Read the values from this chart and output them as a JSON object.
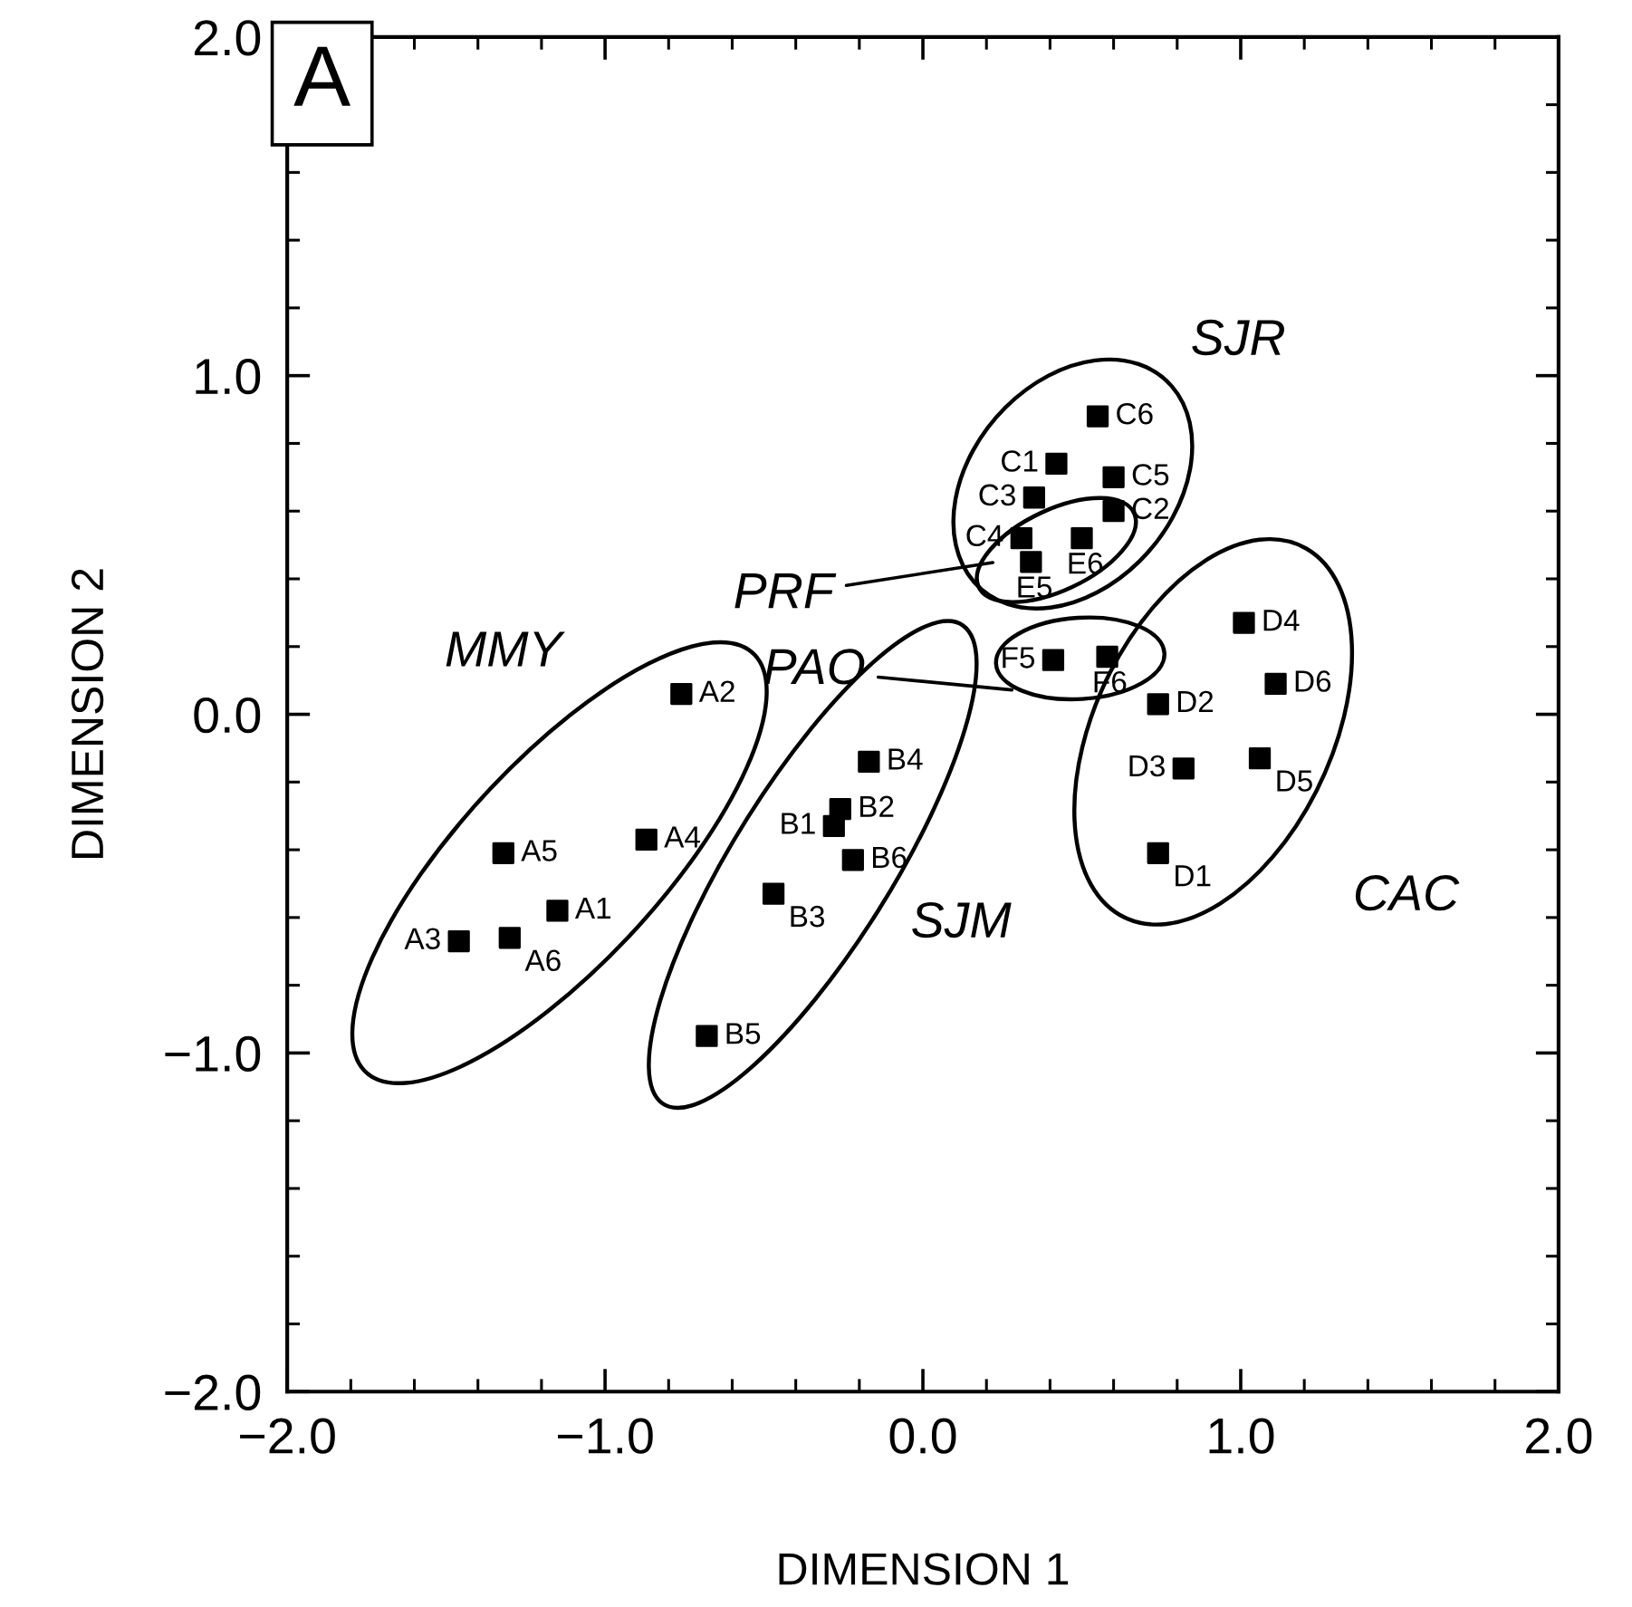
{
  "chart_data": {
    "type": "scatter",
    "xlabel": "DIMENSION 1",
    "ylabel": "DIMENSION 2",
    "xlim": [
      -2,
      2
    ],
    "ylim": [
      -2,
      2
    ],
    "xticks": [
      {
        "value": -2,
        "label": "−2.0"
      },
      {
        "value": -1,
        "label": "−1.0"
      },
      {
        "value": 0,
        "label": "0.0"
      },
      {
        "value": 1,
        "label": "1.0"
      },
      {
        "value": 2,
        "label": "2.0"
      }
    ],
    "yticks": [
      {
        "value": -2,
        "label": "−2.0"
      },
      {
        "value": -1,
        "label": "−1.0"
      },
      {
        "value": 0,
        "label": "0.0"
      },
      {
        "value": 1,
        "label": "1.0"
      },
      {
        "value": 2,
        "label": "2.0"
      }
    ],
    "marker": "square",
    "grid": false,
    "legend": false,
    "series": [
      {
        "color": "#000000",
        "x": [
          -1.15,
          -0.76,
          -1.46,
          -0.87,
          -1.32,
          -1.3
        ],
        "values": [
          -0.58,
          0.06,
          -0.67,
          -0.37,
          -0.41,
          -0.66
        ],
        "value_labels": [
          "A1",
          "A2",
          "A3",
          "A4",
          "A5",
          "A6"
        ]
      },
      {
        "color": "#000000",
        "x": [
          -0.28,
          -0.26,
          -0.47,
          -0.17,
          -0.68,
          -0.22
        ],
        "values": [
          -0.33,
          -0.28,
          -0.53,
          -0.14,
          -0.95,
          -0.43
        ],
        "value_labels": [
          "B1",
          "B2",
          "B3",
          "B4",
          "B5",
          "B6"
        ]
      },
      {
        "color": "#000000",
        "x": [
          0.42,
          0.6,
          0.35,
          0.31,
          0.6,
          0.55
        ],
        "values": [
          0.74,
          0.6,
          0.64,
          0.52,
          0.7,
          0.88
        ],
        "value_labels": [
          "C1",
          "C2",
          "C3",
          "C4",
          "C5",
          "C6"
        ]
      },
      {
        "color": "#000000",
        "x": [
          0.74,
          0.74,
          0.82,
          1.01,
          1.06,
          1.11
        ],
        "values": [
          -0.41,
          0.03,
          -0.16,
          0.27,
          -0.13,
          0.09
        ],
        "value_labels": [
          "D1",
          "D2",
          "D3",
          "D4",
          "D5",
          "D6"
        ]
      },
      {
        "color": "#000000",
        "x": [
          0.34,
          0.5
        ],
        "values": [
          0.45,
          0.52
        ],
        "value_labels": [
          "E5",
          "E6"
        ]
      },
      {
        "color": "#000000",
        "x": [
          0.41,
          0.58
        ],
        "values": [
          0.16,
          0.17
        ],
        "value_labels": [
          "F5",
          "F6"
        ]
      }
    ],
    "annotations": [
      "A",
      "MMY",
      "SJM",
      "SJR",
      "CAC",
      "PRF",
      "PAO"
    ]
  }
}
